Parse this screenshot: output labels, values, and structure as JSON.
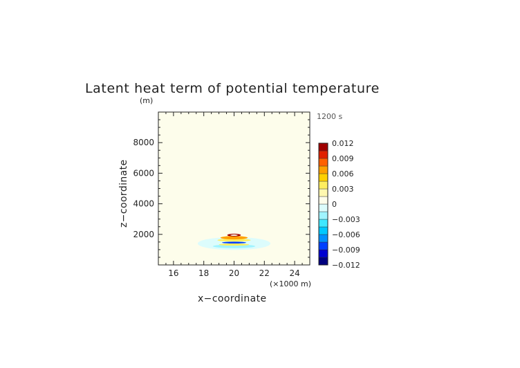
{
  "chart_data": {
    "type": "heatmap",
    "title": "Latent heat term of potential temperature",
    "xlabel": "x−coordinate",
    "ylabel": "z−coordinate",
    "x_unit": "(×1000 m)",
    "y_unit": "(m)",
    "time_label": "1200 s",
    "xlim": [
      15,
      25
    ],
    "ylim": [
      0,
      10000
    ],
    "xticks": [
      16,
      18,
      20,
      22,
      24
    ],
    "xtick_labels": [
      "16",
      "18",
      "20",
      "22",
      "24"
    ],
    "yticks": [
      2000,
      4000,
      6000,
      8000
    ],
    "ytick_labels": [
      "2000",
      "4000",
      "6000",
      "8000"
    ],
    "background_color": "#fdfdeb",
    "colorbar": {
      "min": -0.012,
      "max": 0.012,
      "tick_values": [
        0.012,
        0.009,
        0.006,
        0.003,
        0,
        -0.003,
        -0.006,
        -0.009,
        -0.012
      ],
      "tick_labels": [
        "0.012",
        "0.009",
        "0.006",
        "0.003",
        "0",
        "−0.003",
        "−0.006",
        "−0.009",
        "−0.012"
      ],
      "colors": [
        "#00007f",
        "#0000d0",
        "#0040ff",
        "#0090ff",
        "#00c8ff",
        "#40e8ff",
        "#a0f4ff",
        "#dcfcfc",
        "#fdfdeb",
        "#fff8b0",
        "#ffee60",
        "#ffd000",
        "#ffa000",
        "#ff6000",
        "#e02000",
        "#a00000"
      ]
    },
    "features": [
      {
        "x": 20.0,
        "z": 1950,
        "half_width_km": 0.45,
        "half_height_m": 90,
        "value": 0.012
      },
      {
        "x": 20.0,
        "z": 1950,
        "half_width_km": 0.25,
        "half_height_m": 45,
        "value": 0.0
      },
      {
        "x": 20.0,
        "z": 1780,
        "half_width_km": 0.9,
        "half_height_m": 110,
        "value": 0.006
      },
      {
        "x": 20.0,
        "z": 1620,
        "half_width_km": 1.1,
        "half_height_m": 90,
        "value": 0.003
      },
      {
        "x": 20.0,
        "z": 1460,
        "half_width_km": 0.8,
        "half_height_m": 60,
        "value": -0.009
      },
      {
        "x": 20.0,
        "z": 1330,
        "half_width_km": 1.0,
        "half_height_m": 70,
        "value": 0.003
      },
      {
        "x": 20.0,
        "z": 1400,
        "half_width_km": 2.4,
        "half_height_m": 420,
        "value": -0.001
      },
      {
        "x": 20.0,
        "z": 1220,
        "half_width_km": 1.4,
        "half_height_m": 120,
        "value": -0.002
      }
    ]
  }
}
